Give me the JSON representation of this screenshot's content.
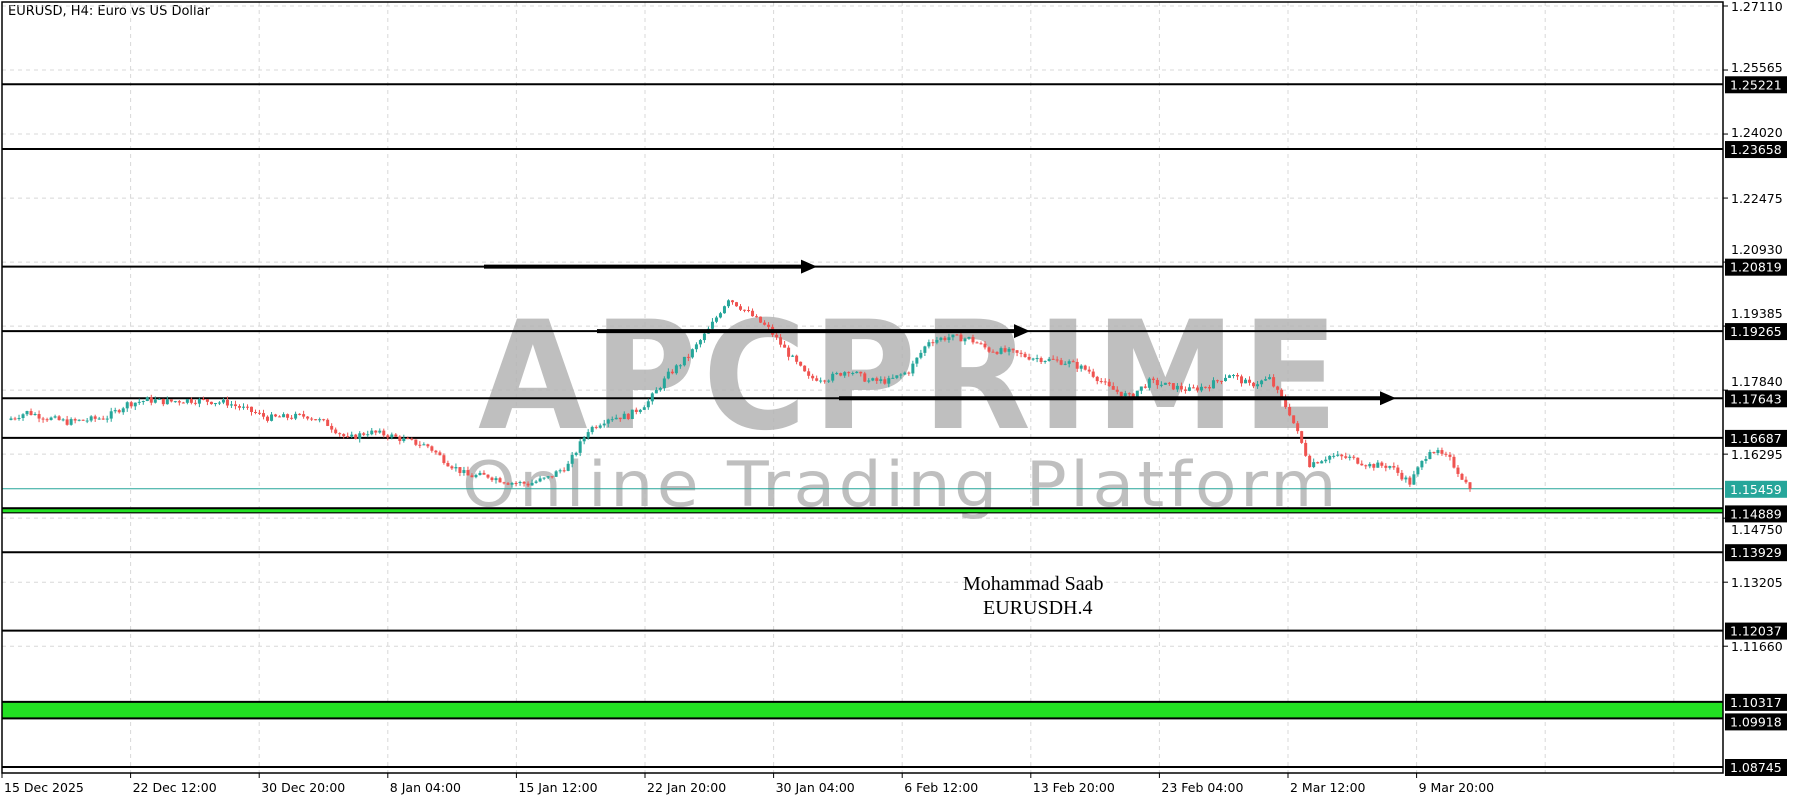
{
  "header": {
    "title": "EURUSD, H4:  Euro vs US Dollar"
  },
  "watermark": {
    "brand": "APCPRIME",
    "tagline": "Online Trading Platform"
  },
  "annotations": {
    "author": "Mohammad Saab",
    "symbol_tf": "EURUSDH.4"
  },
  "colors": {
    "bull": "#26a69a",
    "bear": "#ef5350",
    "level": "#000000",
    "zone": "#22e022",
    "current": "#26a69a",
    "grid": "#d8d8d8"
  },
  "chart_data": {
    "type": "candlestick",
    "symbol": "EURUSD",
    "timeframe": "H4",
    "ylim": [
      1.08745,
      1.2711
    ],
    "grid": true,
    "y_ticks": [
      "1.27110",
      "1.25565",
      "1.24020",
      "1.22475",
      "1.20930",
      "1.19385",
      "1.17840",
      "1.16295",
      "1.14750",
      "1.13205",
      "1.11660"
    ],
    "x_ticks": [
      "15 Dec 2025",
      "22 Dec 12:00",
      "30 Dec 20:00",
      "8 Jan 04:00",
      "15 Jan 12:00",
      "22 Jan 20:00",
      "30 Jan 04:00",
      "6 Feb 12:00",
      "13 Feb 20:00",
      "23 Feb 04:00",
      "2 Mar 12:00",
      "9 Mar 20:00"
    ],
    "approx_closes": [
      1.1712,
      1.1731,
      1.1717,
      1.1707,
      1.1712,
      1.1719,
      1.1751,
      1.176,
      1.1756,
      1.176,
      1.1758,
      1.1753,
      1.1736,
      1.1717,
      1.1719,
      1.1722,
      1.1702,
      1.1666,
      1.1683,
      1.1676,
      1.1661,
      1.1649,
      1.1608,
      1.1577,
      1.1577,
      1.1562,
      1.1558,
      1.1572,
      1.1603,
      1.1688,
      1.1717,
      1.1722,
      1.1756,
      1.1821,
      1.1866,
      1.1929,
      1.2006,
      1.197,
      1.1932,
      1.1871,
      1.1813,
      1.1813,
      1.1833,
      1.1806,
      1.1806,
      1.183,
      1.1903,
      1.1912,
      1.1908,
      1.1881,
      1.1876,
      1.1864,
      1.1857,
      1.185,
      1.183,
      1.1789,
      1.1768,
      1.1804,
      1.1794,
      1.1784,
      1.1796,
      1.1823,
      1.1796,
      1.1811,
      1.1729,
      1.1606,
      1.1625,
      1.162,
      1.1603,
      1.1601,
      1.156,
      1.1642,
      1.1616,
      1.15459
    ],
    "current_price": "1.15459",
    "levels": [
      {
        "label": "1.25221",
        "value": 1.25221
      },
      {
        "label": "1.23658",
        "value": 1.23658
      },
      {
        "label": "1.20819",
        "value": 1.20819
      },
      {
        "label": "1.19265",
        "value": 1.19265
      },
      {
        "label": "1.17643",
        "value": 1.17643
      },
      {
        "label": "1.16687",
        "value": 1.16687
      },
      {
        "label": "1.13929",
        "value": 1.13929
      },
      {
        "label": "1.12037",
        "value": 1.12037
      },
      {
        "label": "1.08745",
        "value": 1.08745
      }
    ],
    "zones": [
      {
        "labels": [
          "1.14889"
        ],
        "top": 1.1499,
        "bottom": 1.14889
      },
      {
        "labels": [
          "1.10317",
          "1.09918"
        ],
        "top": 1.10317,
        "bottom": 1.09918
      }
    ],
    "arrows": [
      {
        "level": 1.20819,
        "from": "10 Jan",
        "to": "26 Jan"
      },
      {
        "level": 1.19265,
        "from": "17 Jan",
        "to": "8 Feb"
      },
      {
        "level": 1.17643,
        "from": "28 Jan",
        "to": "28 Feb"
      }
    ]
  }
}
